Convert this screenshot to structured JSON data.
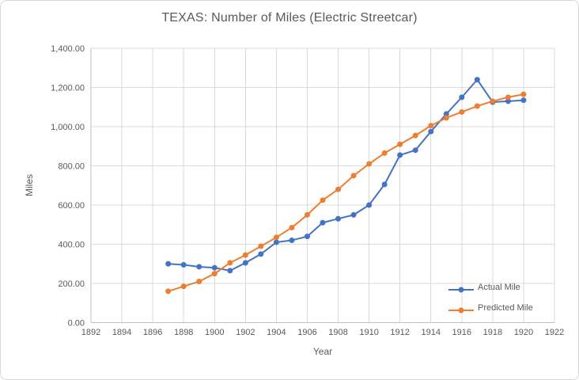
{
  "theme": {
    "background": "#ffffff",
    "frame_border_color": "#d7d7d7",
    "grid_color": "#d9d9d9",
    "axis_line_color": "#bfbfbf",
    "text_color": "#595959",
    "actual_color": "#4472C4",
    "predicted_color": "#ED7D31"
  },
  "chart_data": {
    "type": "line",
    "title": "TEXAS: Number of Miles (Electric Streetcar)",
    "xlabel": "Year",
    "ylabel": "Miles",
    "xlim": [
      1892,
      1922
    ],
    "ylim": [
      0,
      1400
    ],
    "grid": true,
    "legend_position": "inside-bottom-right",
    "x_ticks": [
      1892,
      1894,
      1896,
      1898,
      1900,
      1902,
      1904,
      1906,
      1908,
      1910,
      1912,
      1914,
      1916,
      1918,
      1920,
      1922
    ],
    "y_ticks": [
      {
        "value": 0,
        "label": "0.00"
      },
      {
        "value": 200,
        "label": "200.00"
      },
      {
        "value": 400,
        "label": "400.00"
      },
      {
        "value": 600,
        "label": "600.00"
      },
      {
        "value": 800,
        "label": "800.00"
      },
      {
        "value": 1000,
        "label": "1,000.00"
      },
      {
        "value": 1200,
        "label": "1,200.00"
      },
      {
        "value": 1400,
        "label": "1,400.00"
      }
    ],
    "x": [
      1897,
      1898,
      1899,
      1900,
      1901,
      1902,
      1903,
      1904,
      1905,
      1906,
      1907,
      1908,
      1909,
      1910,
      1911,
      1912,
      1913,
      1914,
      1915,
      1916,
      1917,
      1918,
      1919,
      1920
    ],
    "series": [
      {
        "name": "Actual Mile",
        "color": "#4472C4",
        "marker": "circle",
        "values": [
          300,
          295,
          285,
          280,
          265,
          305,
          350,
          410,
          420,
          440,
          510,
          530,
          550,
          600,
          705,
          855,
          880,
          975,
          1065,
          1150,
          1240,
          1125,
          1130,
          1135
        ]
      },
      {
        "name": "Predicted Mile",
        "color": "#ED7D31",
        "marker": "circle",
        "values": [
          160,
          185,
          210,
          250,
          305,
          345,
          390,
          435,
          485,
          550,
          625,
          680,
          750,
          810,
          865,
          910,
          955,
          1005,
          1045,
          1075,
          1105,
          1130,
          1150,
          1165
        ]
      }
    ]
  }
}
